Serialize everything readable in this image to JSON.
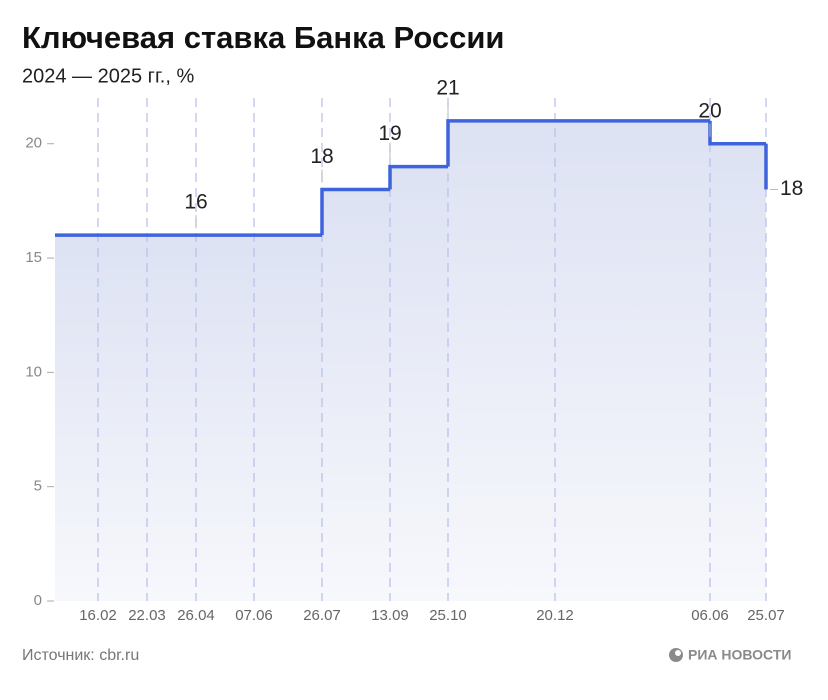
{
  "chart_data": {
    "type": "step",
    "title": "Ключевая ставка Банка России",
    "subtitle": "2024 — 2025 гг., %",
    "categories": [
      "16.02",
      "22.03",
      "26.04",
      "07.06",
      "26.07",
      "13.09",
      "25.10",
      "20.12",
      "06.06",
      "25.07"
    ],
    "values": [
      16,
      16,
      16,
      16,
      18,
      19,
      21,
      21,
      20,
      18
    ],
    "value_labels": [
      null,
      null,
      "16",
      null,
      "18",
      "19",
      "21",
      null,
      "20",
      "18"
    ],
    "color": "#3d63dd",
    "ylim": [
      0,
      22
    ],
    "yticks": [
      0,
      5,
      10,
      15,
      20
    ],
    "source": "Источник: cbr.ru",
    "brand": "РИА НОВОСТИ"
  }
}
